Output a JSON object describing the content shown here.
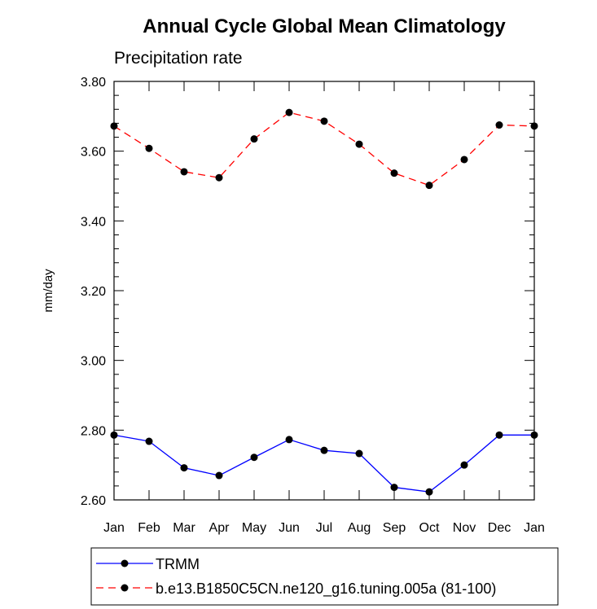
{
  "chart_data": {
    "type": "line",
    "title": "Annual Cycle Global Mean Climatology",
    "subtitle": "Precipitation rate",
    "xlabel": "",
    "ylabel": "mm/day",
    "categories": [
      "Jan",
      "Feb",
      "Mar",
      "Apr",
      "May",
      "Jun",
      "Jul",
      "Aug",
      "Sep",
      "Oct",
      "Nov",
      "Dec",
      "Jan"
    ],
    "ylim": [
      2.6,
      3.8
    ],
    "yticks": [
      "2.60",
      "2.80",
      "3.00",
      "3.20",
      "3.40",
      "3.60",
      "3.80"
    ],
    "grid": false,
    "legend_position": "bottom",
    "series": [
      {
        "name": "TRMM",
        "color": "#0000ff",
        "line_style": "solid",
        "marker": "filled-circle",
        "values": [
          2.786,
          2.768,
          2.692,
          2.67,
          2.722,
          2.773,
          2.742,
          2.733,
          2.636,
          2.623,
          2.7,
          2.786,
          2.786
        ]
      },
      {
        "name": "b.e13.B1850C5CN.ne120_g16.tuning.005a (81-100)",
        "color": "#ff0000",
        "line_style": "dashed",
        "marker": "filled-circle",
        "values": [
          3.672,
          3.608,
          3.541,
          3.524,
          3.635,
          3.711,
          3.686,
          3.62,
          3.537,
          3.502,
          3.576,
          3.675,
          3.672
        ]
      }
    ]
  }
}
